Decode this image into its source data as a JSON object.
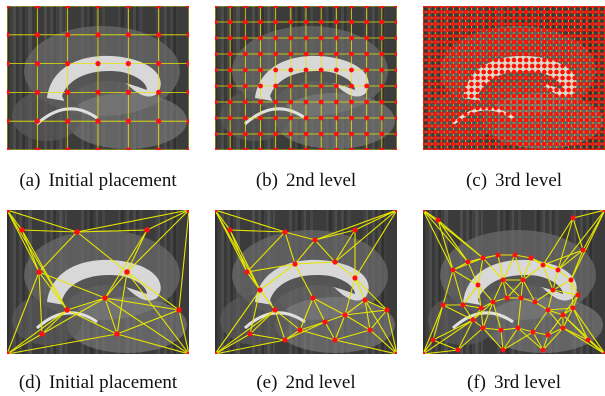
{
  "figure": {
    "colors": {
      "grid_line": "#e6e600",
      "node": "#ff1010",
      "tissue": "#3b3b3b"
    },
    "panels": [
      {
        "tag": "(a)",
        "label": "Initial placement"
      },
      {
        "tag": "(b)",
        "label": "2nd level"
      },
      {
        "tag": "(c)",
        "label": "3rd level"
      },
      {
        "tag": "(d)",
        "label": "Initial placement"
      },
      {
        "tag": "(e)",
        "label": "2nd level"
      },
      {
        "tag": "(f)",
        "label": "3rd level"
      }
    ]
  }
}
